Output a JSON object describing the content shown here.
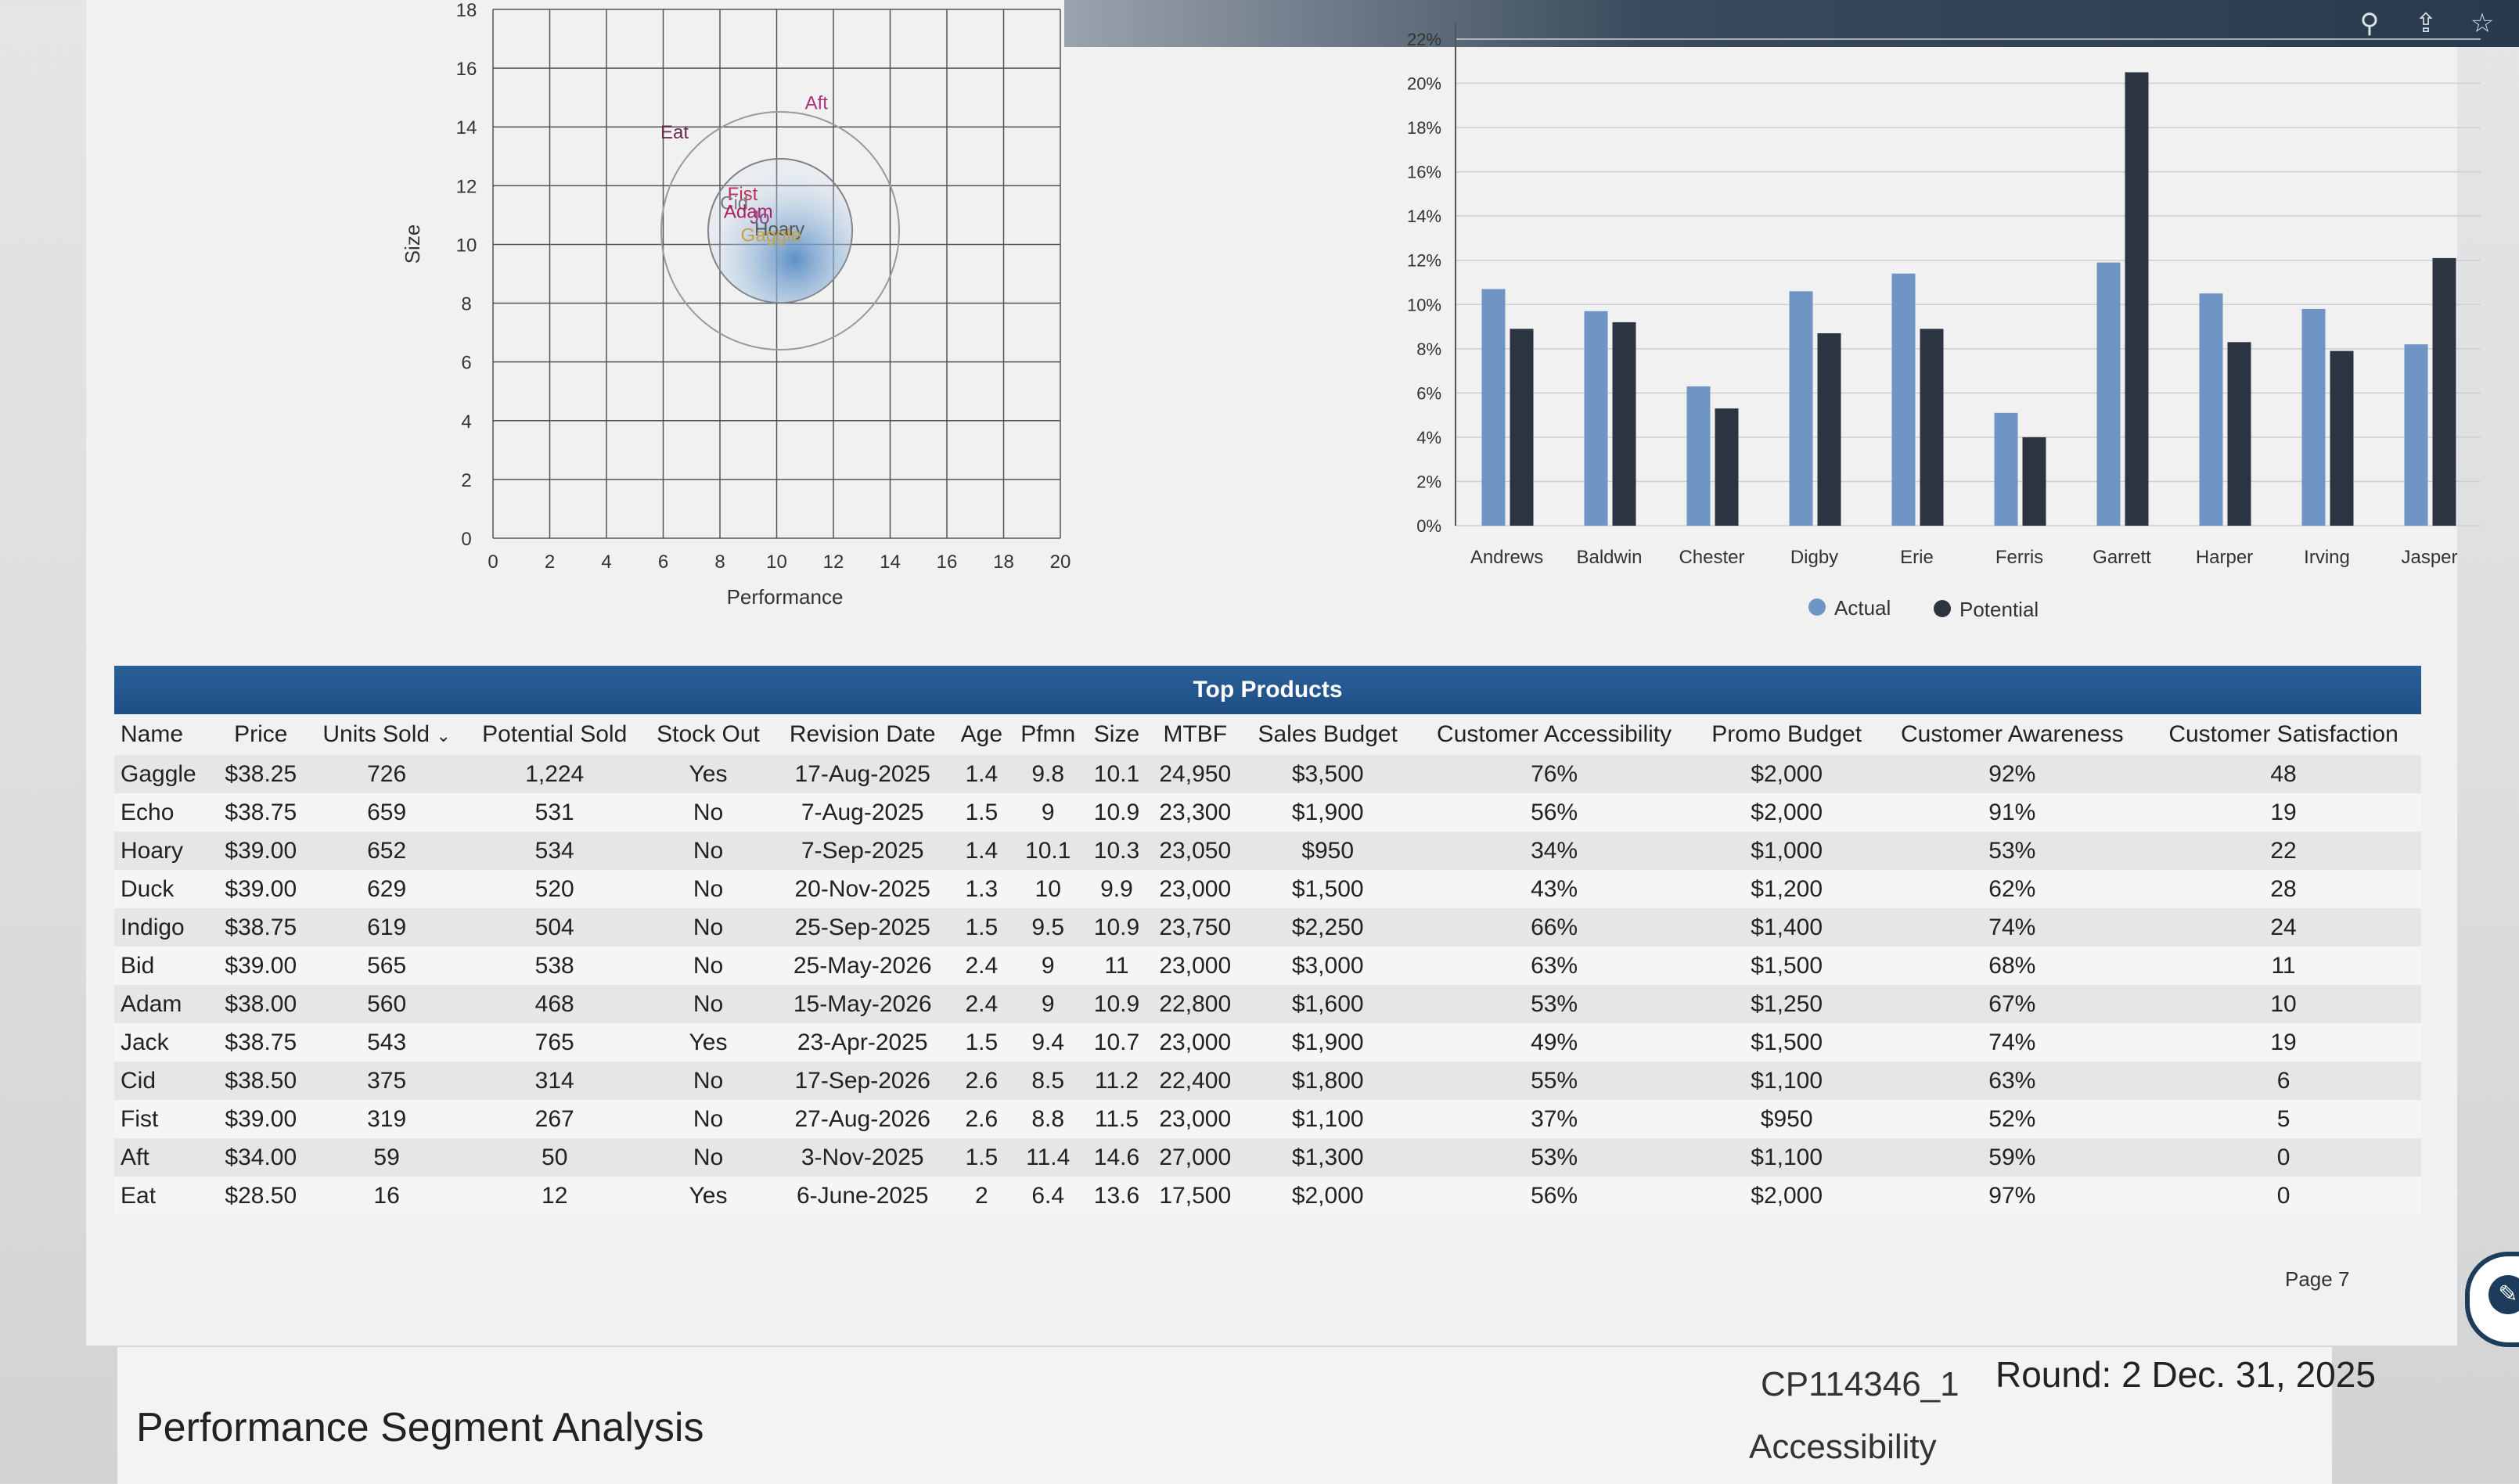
{
  "perceptual_map": {
    "x_axis_label": "Performance",
    "y_axis_label": "Size",
    "x_ticks": [
      "0",
      "2",
      "4",
      "6",
      "8",
      "10",
      "12",
      "14",
      "16",
      "18",
      "20"
    ],
    "y_ticks": [
      "0",
      "2",
      "4",
      "6",
      "8",
      "10",
      "12",
      "14",
      "16",
      "18"
    ],
    "points": [
      {
        "label": "Eat",
        "x": 6.4,
        "y": 13.6,
        "color": "#6b2b4a"
      },
      {
        "label": "Aft",
        "x": 11.4,
        "y": 14.6,
        "color": "#b0307a"
      },
      {
        "label": "Fist",
        "x": 8.8,
        "y": 11.5,
        "color": "#c0305a"
      },
      {
        "label": "Cid",
        "x": 8.5,
        "y": 11.2,
        "color": "#7a7a7a"
      },
      {
        "label": "Adam",
        "x": 9.0,
        "y": 10.9,
        "color": "#b02060"
      },
      {
        "label": "Jo",
        "x": 9.4,
        "y": 10.7,
        "color": "#8a4a8a"
      },
      {
        "label": "Hoary",
        "x": 10.1,
        "y": 10.3,
        "color": "#555"
      },
      {
        "label": "Gaggle",
        "x": 9.8,
        "y": 10.1,
        "color": "#c8a040"
      }
    ],
    "x_range": [
      0,
      20
    ],
    "y_range": [
      0,
      18
    ]
  },
  "chart_data": {
    "type": "bar",
    "categories": [
      "Andrews",
      "Baldwin",
      "Chester",
      "Digby",
      "Erie",
      "Ferris",
      "Garrett",
      "Harper",
      "Irving",
      "Jasper"
    ],
    "series": [
      {
        "name": "Actual",
        "values": [
          10.7,
          9.7,
          6.3,
          10.6,
          11.4,
          5.1,
          11.9,
          10.5,
          9.8,
          8.2
        ],
        "color": "#6f95c4"
      },
      {
        "name": "Potential",
        "values": [
          8.9,
          9.2,
          5.3,
          8.7,
          8.9,
          4.0,
          20.5,
          8.3,
          7.9,
          12.1
        ],
        "color": "#2b3440"
      }
    ],
    "y_ticks": [
      "0%",
      "2%",
      "4%",
      "6%",
      "8%",
      "10%",
      "12%",
      "14%",
      "16%",
      "18%",
      "20%",
      "22%"
    ],
    "ylim": [
      0,
      22
    ],
    "legend_position": "bottom"
  },
  "table": {
    "title": "Top Products",
    "columns": [
      "Name",
      "Price",
      "Units Sold",
      "Potential Sold",
      "Stock Out",
      "Revision Date",
      "Age",
      "Pfmn",
      "Size",
      "MTBF",
      "Sales Budget",
      "Customer Accessibility",
      "Promo Budget",
      "Customer Awareness",
      "Customer Satisfaction"
    ],
    "sort_arrow": "⌄",
    "rows": [
      [
        "Gaggle",
        "$38.25",
        "726",
        "1,224",
        "Yes",
        "17-Aug-2025",
        "1.4",
        "9.8",
        "10.1",
        "24,950",
        "$3,500",
        "76%",
        "$2,000",
        "92%",
        "48"
      ],
      [
        "Echo",
        "$38.75",
        "659",
        "531",
        "No",
        "7-Aug-2025",
        "1.5",
        "9",
        "10.9",
        "23,300",
        "$1,900",
        "56%",
        "$2,000",
        "91%",
        "19"
      ],
      [
        "Hoary",
        "$39.00",
        "652",
        "534",
        "No",
        "7-Sep-2025",
        "1.4",
        "10.1",
        "10.3",
        "23,050",
        "$950",
        "34%",
        "$1,000",
        "53%",
        "22"
      ],
      [
        "Duck",
        "$39.00",
        "629",
        "520",
        "No",
        "20-Nov-2025",
        "1.3",
        "10",
        "9.9",
        "23,000",
        "$1,500",
        "43%",
        "$1,200",
        "62%",
        "28"
      ],
      [
        "Indigo",
        "$38.75",
        "619",
        "504",
        "No",
        "25-Sep-2025",
        "1.5",
        "9.5",
        "10.9",
        "23,750",
        "$2,250",
        "66%",
        "$1,400",
        "74%",
        "24"
      ],
      [
        "Bid",
        "$39.00",
        "565",
        "538",
        "No",
        "25-May-2026",
        "2.4",
        "9",
        "11",
        "23,000",
        "$3,000",
        "63%",
        "$1,500",
        "68%",
        "11"
      ],
      [
        "Adam",
        "$38.00",
        "560",
        "468",
        "No",
        "15-May-2026",
        "2.4",
        "9",
        "10.9",
        "22,800",
        "$1,600",
        "53%",
        "$1,250",
        "67%",
        "10"
      ],
      [
        "Jack",
        "$38.75",
        "543",
        "765",
        "Yes",
        "23-Apr-2025",
        "1.5",
        "9.4",
        "10.7",
        "23,000",
        "$1,900",
        "49%",
        "$1,500",
        "74%",
        "19"
      ],
      [
        "Cid",
        "$38.50",
        "375",
        "314",
        "No",
        "17-Sep-2026",
        "2.6",
        "8.5",
        "11.2",
        "22,400",
        "$1,800",
        "55%",
        "$1,100",
        "63%",
        "6"
      ],
      [
        "Fist",
        "$39.00",
        "319",
        "267",
        "No",
        "27-Aug-2026",
        "2.6",
        "8.8",
        "11.5",
        "23,000",
        "$1,100",
        "37%",
        "$950",
        "52%",
        "5"
      ],
      [
        "Aft",
        "$34.00",
        "59",
        "50",
        "No",
        "3-Nov-2025",
        "1.5",
        "11.4",
        "14.6",
        "27,000",
        "$1,300",
        "53%",
        "$1,100",
        "59%",
        "0"
      ],
      [
        "Eat",
        "$28.50",
        "16",
        "12",
        "Yes",
        "6-June-2025",
        "2",
        "6.4",
        "13.6",
        "17,500",
        "$2,000",
        "56%",
        "$2,000",
        "97%",
        "0"
      ]
    ]
  },
  "footer": {
    "page_label": "Page 7",
    "company_code": "CP114346_1",
    "round_text": "Round: 2 Dec. 31, 2025",
    "next_title": "Accessibility",
    "section_title": "Performance Segment Analysis"
  },
  "icons": {
    "search": "search-icon",
    "share": "share-icon",
    "star": "star-icon",
    "chat": "chat-icon"
  }
}
